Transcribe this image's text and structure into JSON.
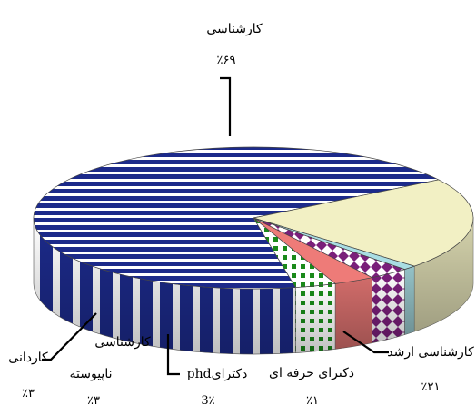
{
  "chart_data": {
    "type": "pie",
    "title": "",
    "slices": [
      {
        "label": "کارشناسی",
        "percent_text": "٪۶۹",
        "value": 69,
        "color": "#1c2a8a",
        "pattern": "hstripes"
      },
      {
        "label": "کارشناسی ارشد",
        "percent_text": "٪۲۱",
        "value": 21,
        "color": "#f2f0c4",
        "pattern": "solid"
      },
      {
        "label": "دکترای حرفه ای",
        "percent_text": "٪۱",
        "value": 1,
        "color": "#a9dde3",
        "pattern": "solid"
      },
      {
        "label": "دکترایphd",
        "percent_text": "3٪",
        "value": 3,
        "color": "#7a1f7a",
        "pattern": "crosses"
      },
      {
        "label": "کارشناسی ناپیوسته",
        "percent_text": "٪۳",
        "value": 3,
        "color": "#ee7b78",
        "pattern": "solid"
      },
      {
        "label": "کاردانی",
        "percent_text": "٪۳",
        "value": 3,
        "color": "#1a8a1a",
        "pattern": "dashes"
      }
    ],
    "legend": "none",
    "label_placement": "outside-with-leaders"
  }
}
